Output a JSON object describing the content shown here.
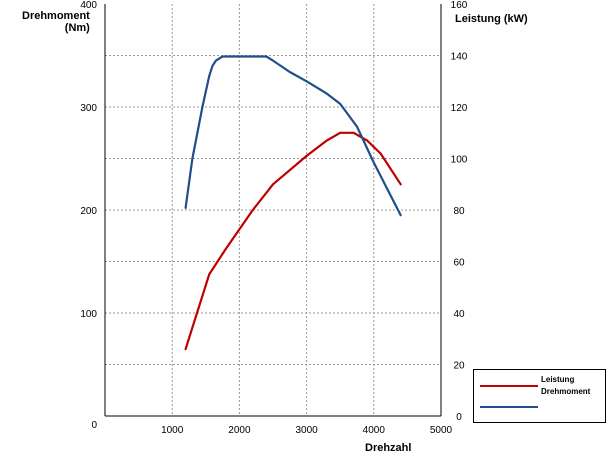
{
  "chart_data": {
    "type": "line",
    "xlabel": "Drehzahl",
    "ylabel_left": "Drehmoment (Nm)",
    "ylabel_right": "Leistung (kW)",
    "xlim": [
      0,
      5000
    ],
    "ylim_left": [
      0,
      400
    ],
    "ylim_right": [
      0,
      160
    ],
    "x_ticks": [
      1000,
      2000,
      3000,
      4000,
      5000
    ],
    "y_ticks_left": [
      100,
      200,
      300,
      400
    ],
    "y_ticks_right": [
      0,
      20,
      40,
      60,
      80,
      100,
      120,
      140,
      160
    ],
    "origin_label": "0",
    "grid": true,
    "legend_position": "bottom-right",
    "series": [
      {
        "name": "Leistung",
        "axis": "right",
        "color": "#c00000",
        "x": [
          1200,
          1550,
          1800,
          2200,
          2500,
          3000,
          3300,
          3500,
          3700,
          3900,
          4100,
          4400
        ],
        "values": [
          26,
          55,
          65,
          80,
          90,
          101,
          107,
          110,
          110,
          107,
          102,
          90
        ]
      },
      {
        "name": "Drehmoment",
        "axis": "left",
        "color": "#1f4e8c",
        "x": [
          1200,
          1300,
          1450,
          1550,
          1600,
          1650,
          1750,
          1900,
          2100,
          2400,
          2500,
          2750,
          3000,
          3300,
          3500,
          3750,
          4000,
          4400
        ],
        "values": [
          202,
          250,
          300,
          330,
          340,
          345,
          349,
          349,
          349,
          349,
          345,
          334,
          325,
          313,
          303,
          281,
          246,
          195
        ]
      }
    ]
  },
  "labels": {
    "ylabel_left_line1": "Drehmoment",
    "ylabel_left_line2": "(Nm)",
    "ylabel_right": "Leistung (kW)",
    "xlabel": "Drehzahl",
    "legend_leistung": "Leistung",
    "legend_drehmoment": "Drehmoment"
  }
}
